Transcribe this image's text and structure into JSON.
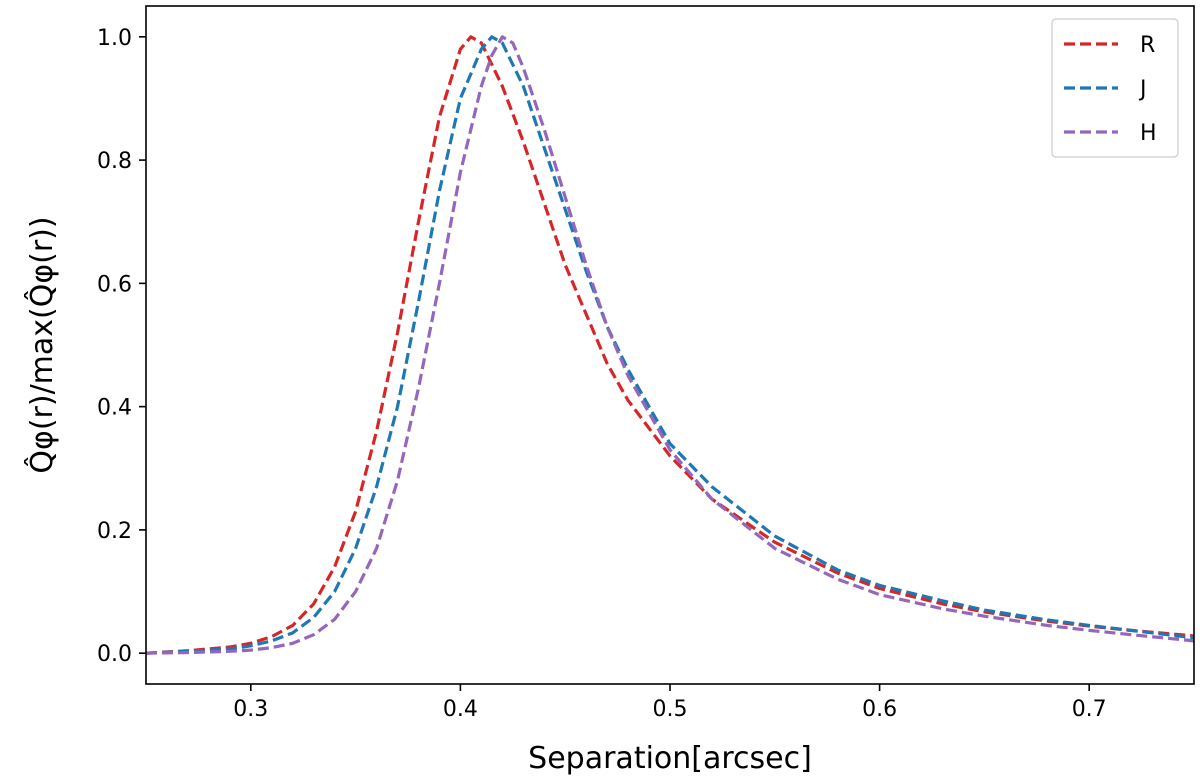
{
  "chart_data": {
    "type": "line",
    "title": "",
    "xlabel": "Separation[arcsec]",
    "ylabel": "Q̂φ(r)/max(Q̂φ(r))",
    "xlim": [
      0.25,
      0.75
    ],
    "ylim": [
      -0.05,
      1.05
    ],
    "xticks": [
      0.3,
      0.4,
      0.5,
      0.6,
      0.7
    ],
    "xtick_labels": [
      "0.3",
      "0.4",
      "0.5",
      "0.6",
      "0.7"
    ],
    "yticks": [
      0.0,
      0.2,
      0.4,
      0.6,
      0.8,
      1.0
    ],
    "ytick_labels": [
      "0.0",
      "0.2",
      "0.4",
      "0.6",
      "0.8",
      "1.0"
    ],
    "grid": false,
    "legend_position": "top-right",
    "line_style": "dashed",
    "series": [
      {
        "name": "R",
        "color": "#d62728",
        "x": [
          0.25,
          0.27,
          0.29,
          0.3,
          0.31,
          0.32,
          0.33,
          0.34,
          0.35,
          0.36,
          0.37,
          0.38,
          0.39,
          0.4,
          0.405,
          0.41,
          0.42,
          0.43,
          0.44,
          0.45,
          0.46,
          0.47,
          0.48,
          0.5,
          0.52,
          0.55,
          0.58,
          0.6,
          0.63,
          0.65,
          0.68,
          0.7,
          0.72,
          0.75
        ],
        "y": [
          0.0,
          0.004,
          0.01,
          0.016,
          0.027,
          0.045,
          0.08,
          0.14,
          0.23,
          0.36,
          0.52,
          0.7,
          0.87,
          0.98,
          1.0,
          0.99,
          0.92,
          0.83,
          0.73,
          0.63,
          0.55,
          0.47,
          0.41,
          0.32,
          0.25,
          0.18,
          0.13,
          0.105,
          0.08,
          0.067,
          0.052,
          0.044,
          0.037,
          0.028
        ]
      },
      {
        "name": "J",
        "color": "#1f77b4",
        "x": [
          0.25,
          0.27,
          0.29,
          0.3,
          0.31,
          0.32,
          0.33,
          0.34,
          0.35,
          0.36,
          0.37,
          0.38,
          0.39,
          0.4,
          0.41,
          0.415,
          0.42,
          0.43,
          0.44,
          0.45,
          0.46,
          0.47,
          0.48,
          0.5,
          0.52,
          0.55,
          0.58,
          0.6,
          0.63,
          0.65,
          0.68,
          0.7,
          0.72,
          0.75
        ],
        "y": [
          0.0,
          0.003,
          0.007,
          0.012,
          0.02,
          0.033,
          0.058,
          0.1,
          0.17,
          0.27,
          0.4,
          0.57,
          0.75,
          0.9,
          0.98,
          1.0,
          0.99,
          0.92,
          0.82,
          0.72,
          0.62,
          0.53,
          0.46,
          0.34,
          0.27,
          0.19,
          0.135,
          0.11,
          0.085,
          0.07,
          0.054,
          0.045,
          0.037,
          0.025
        ]
      },
      {
        "name": "H",
        "color": "#9467bd",
        "x": [
          0.25,
          0.27,
          0.29,
          0.3,
          0.31,
          0.32,
          0.33,
          0.34,
          0.35,
          0.36,
          0.37,
          0.38,
          0.39,
          0.4,
          0.41,
          0.415,
          0.42,
          0.425,
          0.43,
          0.44,
          0.45,
          0.46,
          0.47,
          0.48,
          0.5,
          0.52,
          0.55,
          0.58,
          0.6,
          0.63,
          0.65,
          0.68,
          0.7,
          0.72,
          0.75
        ],
        "y": [
          0.0,
          0.001,
          0.003,
          0.005,
          0.009,
          0.016,
          0.03,
          0.055,
          0.1,
          0.17,
          0.28,
          0.43,
          0.6,
          0.78,
          0.92,
          0.97,
          1.0,
          0.99,
          0.95,
          0.85,
          0.74,
          0.63,
          0.53,
          0.45,
          0.33,
          0.25,
          0.17,
          0.12,
          0.095,
          0.072,
          0.06,
          0.045,
          0.037,
          0.03,
          0.02
        ]
      }
    ]
  }
}
